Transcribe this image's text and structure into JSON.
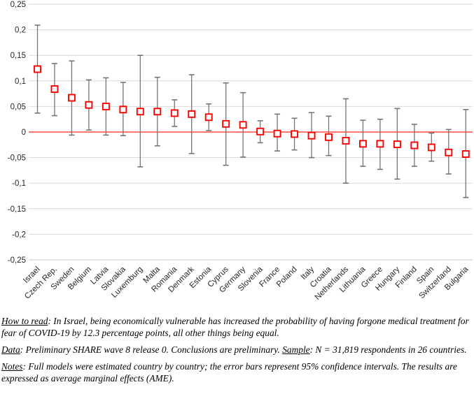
{
  "chart_data": {
    "type": "scatter",
    "subtype": "point-with-error-bars",
    "categories": [
      "Israel",
      "Czech Rep.",
      "Sweden",
      "Belgium",
      "Latvia",
      "Slovakia",
      "Luxemburg",
      "Malta",
      "Romania",
      "Denmark",
      "Estonia",
      "Cyprus",
      "Germany",
      "Slovenia",
      "France",
      "Poland",
      "Italy",
      "Croatia",
      "Netherlands",
      "Lithuania",
      "Greece",
      "Hungary",
      "Finland",
      "Spain",
      "Switzerland",
      "Bulgaria"
    ],
    "series": [
      {
        "name": "Average marginal effect (AME)",
        "values": [
          0.123,
          0.084,
          0.067,
          0.053,
          0.05,
          0.044,
          0.04,
          0.04,
          0.037,
          0.035,
          0.029,
          0.016,
          0.014,
          0.001,
          -0.003,
          -0.004,
          -0.007,
          -0.01,
          -0.017,
          -0.023,
          -0.023,
          -0.024,
          -0.026,
          -0.03,
          -0.04,
          -0.043
        ],
        "ci_low": [
          0.037,
          0.032,
          -0.006,
          0.004,
          -0.006,
          -0.007,
          -0.068,
          -0.027,
          0.011,
          -0.042,
          0.003,
          -0.065,
          -0.049,
          -0.021,
          -0.037,
          -0.035,
          -0.05,
          -0.046,
          -0.1,
          -0.067,
          -0.073,
          -0.092,
          -0.067,
          -0.057,
          -0.082,
          -0.128
        ],
        "ci_high": [
          0.209,
          0.134,
          0.139,
          0.102,
          0.106,
          0.097,
          0.15,
          0.107,
          0.063,
          0.112,
          0.055,
          0.096,
          0.077,
          0.022,
          0.035,
          0.027,
          0.038,
          0.031,
          0.065,
          0.023,
          0.025,
          0.046,
          0.015,
          -0.002,
          0.005,
          0.044
        ]
      }
    ],
    "title": "",
    "xlabel": "",
    "ylabel": "",
    "ylim": [
      -0.25,
      0.25
    ],
    "ytick_step": 0.05,
    "ytick_labels": [
      "0,25",
      "0,2",
      "0,15",
      "0,1",
      "0,05",
      "0",
      "-0,05",
      "-0,1",
      "-0,15",
      "-0,2",
      "-0,25"
    ],
    "grid": true,
    "legend": "none",
    "zero_line": 0,
    "colors": {
      "marker_stroke": "#FF0000",
      "marker_fill": "#FFFFFF",
      "error_bar": "#757575",
      "gridline": "#DADADA",
      "axis_bottom": "#C8C8C8",
      "zero_line": "#FF2018",
      "tick_text": "#262626"
    }
  },
  "notes": {
    "how_to_read": {
      "label": "How to read",
      "text": ": In Israel, being economically vulnerable has increased the probability of having forgone medical treatment for fear of COVID-19 by 12.3 percentage points, all other things being equal."
    },
    "data_line": {
      "label": "Data",
      "text": ": Preliminary SHARE wave 8 release 0. Conclusions are preliminary. ",
      "label2": "Sample",
      "text2": ": N = 31,819 respondents in 26 countries."
    },
    "notes_line": {
      "label": "Notes",
      "text": ": Full models were estimated country by country; the error bars represent 95% confidence intervals. The results are expressed as average marginal effects (AME)."
    }
  }
}
